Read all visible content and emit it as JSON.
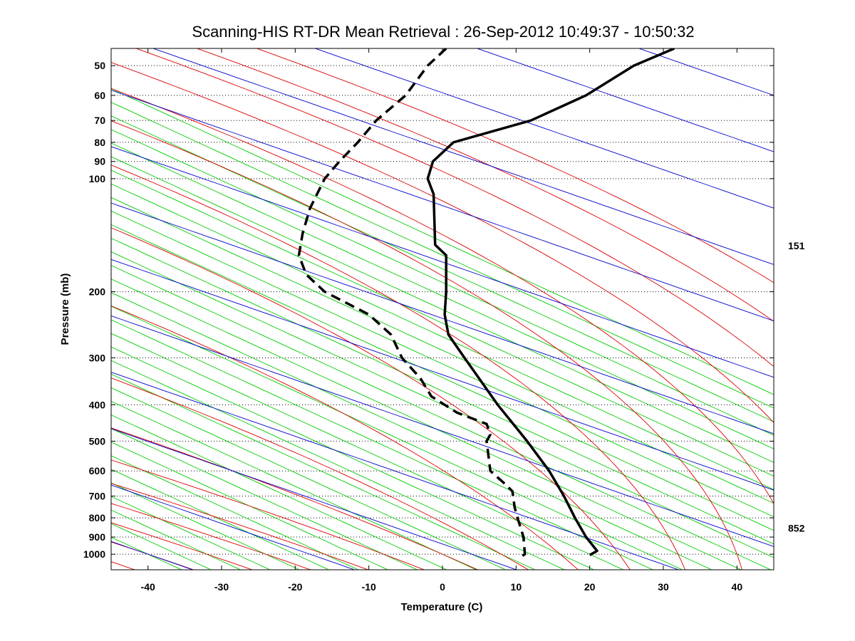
{
  "chart_data": {
    "type": "line",
    "title": "Scanning-HIS RT-DR Mean Retrieval : 26-Sep-2012 10:49:37 - 10:50:32",
    "xlabel": "Temperature (C)",
    "ylabel": "Pressure (mb)",
    "xlim": [
      -45,
      45
    ],
    "ylim": [
      1100,
      45
    ],
    "y_scale": "log",
    "x_ticks": [
      "-40",
      "-30",
      "-20",
      "-10",
      "0",
      "10",
      "20",
      "30",
      "40"
    ],
    "y_ticks": [
      "50",
      "60",
      "70",
      "80",
      "90",
      "100",
      "200",
      "300",
      "400",
      "500",
      "600",
      "700",
      "800",
      "900",
      "1000"
    ],
    "grid": "dotted horizontal at pressure ticks",
    "right_labels": [
      {
        "text": "151",
        "pressure": 151
      },
      {
        "text": "852",
        "pressure": 852
      }
    ],
    "colors": {
      "dry_adiabats": "#0000cc",
      "moist_adiabats": "#dd0000",
      "mixing_ratio": "#00cc00",
      "profiles": "#000000"
    },
    "series": [
      {
        "style": "solid",
        "points": [
          {
            "p": 45,
            "t": 31.5
          },
          {
            "p": 50,
            "t": 26
          },
          {
            "p": 60,
            "t": 19.5
          },
          {
            "p": 70,
            "t": 12
          },
          {
            "p": 80,
            "t": 1.5
          },
          {
            "p": 90,
            "t": -1.3
          },
          {
            "p": 100,
            "t": -2.0
          },
          {
            "p": 110,
            "t": -1.2
          },
          {
            "p": 150,
            "t": -1.0
          },
          {
            "p": 160,
            "t": 0.5
          },
          {
            "p": 200,
            "t": 0.5
          },
          {
            "p": 230,
            "t": 0.3
          },
          {
            "p": 260,
            "t": 0.8
          },
          {
            "p": 300,
            "t": 3.0
          },
          {
            "p": 400,
            "t": 7.5
          },
          {
            "p": 500,
            "t": 11.5
          },
          {
            "p": 600,
            "t": 14.5
          },
          {
            "p": 700,
            "t": 16.5
          },
          {
            "p": 800,
            "t": 18.0
          },
          {
            "p": 900,
            "t": 19.5
          },
          {
            "p": 980,
            "t": 21.0
          },
          {
            "p": 1005,
            "t": 20.0
          }
        ]
      },
      {
        "style": "dashed",
        "points": [
          {
            "p": 45,
            "t": 0.5
          },
          {
            "p": 50,
            "t": -2
          },
          {
            "p": 60,
            "t": -5
          },
          {
            "p": 70,
            "t": -9
          },
          {
            "p": 80,
            "t": -11.5
          },
          {
            "p": 90,
            "t": -14
          },
          {
            "p": 100,
            "t": -16
          },
          {
            "p": 120,
            "t": -18
          },
          {
            "p": 140,
            "t": -19
          },
          {
            "p": 160,
            "t": -19.5
          },
          {
            "p": 180,
            "t": -18.5
          },
          {
            "p": 200,
            "t": -16
          },
          {
            "p": 230,
            "t": -10
          },
          {
            "p": 260,
            "t": -7
          },
          {
            "p": 300,
            "t": -5.5
          },
          {
            "p": 340,
            "t": -3
          },
          {
            "p": 380,
            "t": -1.5
          },
          {
            "p": 420,
            "t": 2
          },
          {
            "p": 450,
            "t": 6
          },
          {
            "p": 480,
            "t": 6.5
          },
          {
            "p": 500,
            "t": 6
          },
          {
            "p": 600,
            "t": 6.5
          },
          {
            "p": 650,
            "t": 8.5
          },
          {
            "p": 680,
            "t": 9.5
          },
          {
            "p": 750,
            "t": 9.8
          },
          {
            "p": 800,
            "t": 10.2
          },
          {
            "p": 900,
            "t": 11.0
          },
          {
            "p": 1000,
            "t": 11.2
          },
          {
            "p": 1020,
            "t": 10.5
          }
        ]
      }
    ]
  }
}
